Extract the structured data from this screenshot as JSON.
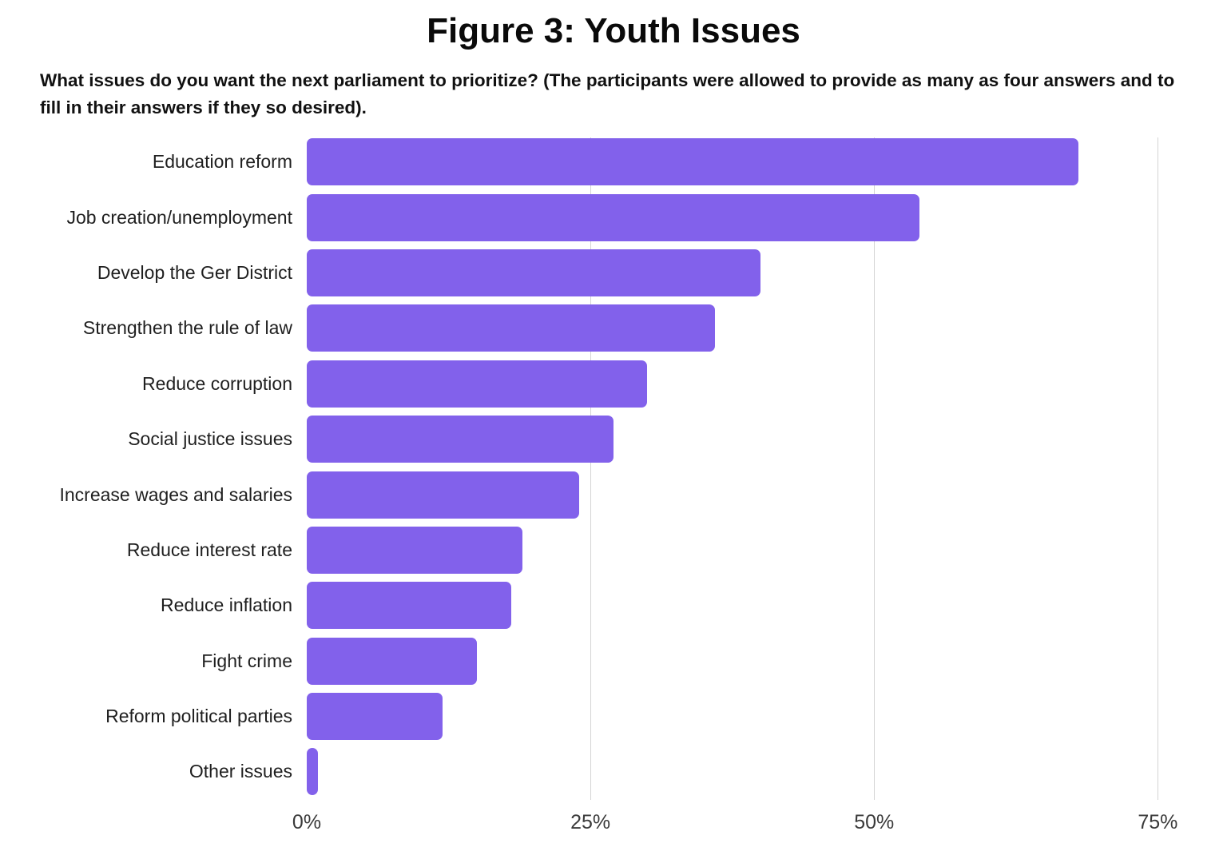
{
  "title": "Figure 3: Youth Issues",
  "subtitle": "What issues do you want the next parliament to prioritize? (The participants were allowed to provide as many as four answers and to fill in their answers if they so desired).",
  "chart_data": {
    "type": "bar",
    "orientation": "horizontal",
    "title": "Figure 3: Youth Issues",
    "xlabel": "",
    "ylabel": "",
    "unit": "%",
    "categories": [
      "Education reform",
      "Job creation/unemployment",
      "Develop the Ger District",
      "Strengthen the rule of law",
      "Reduce corruption",
      "Social justice issues",
      "Increase wages and salaries",
      "Reduce interest rate",
      "Reduce inflation",
      "Fight crime",
      "Reform political parties",
      "Other issues"
    ],
    "values": [
      68,
      54,
      40,
      36,
      30,
      27,
      24,
      19,
      18,
      15,
      12,
      1
    ],
    "axis": {
      "tick_values": [
        0,
        25,
        50,
        75
      ],
      "ticks": [
        "0%",
        "25%",
        "50%",
        "75%"
      ],
      "max": 78,
      "grid": true
    },
    "legend": "none",
    "colors": {
      "bar": "#8261EB",
      "gridline": "#d4d4d4",
      "label_text": "#1f1f1f",
      "tick_text": "#3a3a3a",
      "background": "#ffffff"
    }
  }
}
